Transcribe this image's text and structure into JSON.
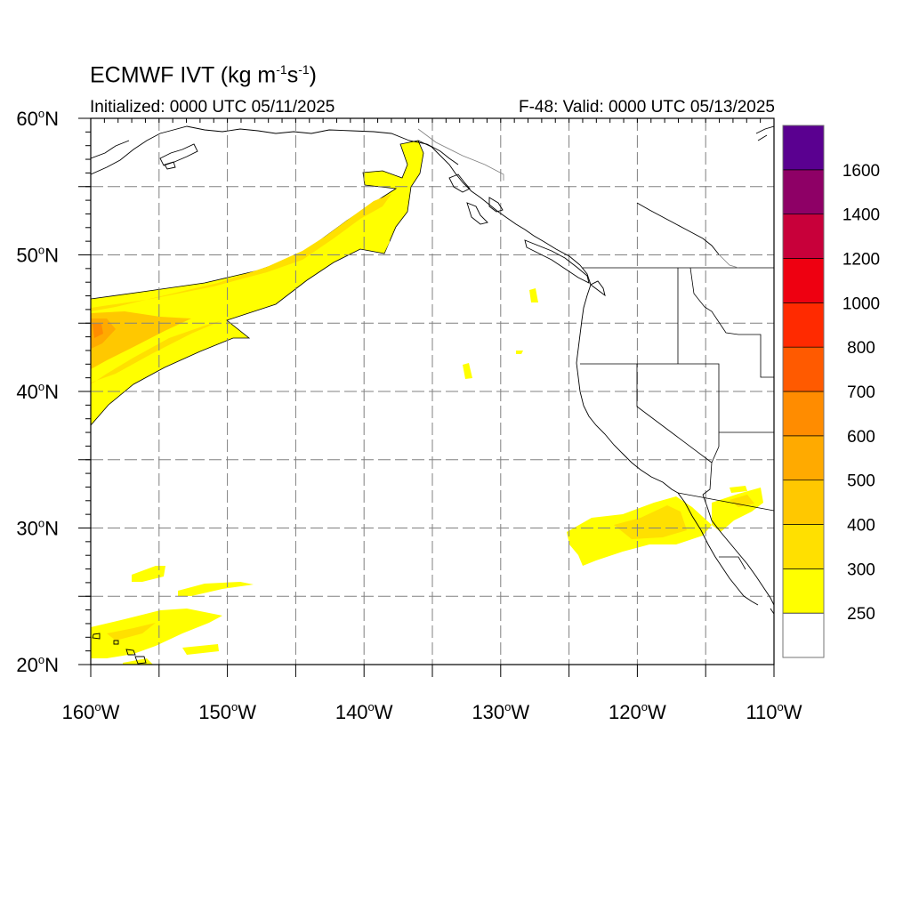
{
  "title": {
    "prefix": "ECMWF IVT (kg m",
    "exp1": "-1",
    "middle": "s",
    "exp2": "-1",
    "suffix": ")"
  },
  "initialized": "Initialized: 0000 UTC 05/11/2025",
  "valid": "F-48: Valid: 0000 UTC 05/13/2025",
  "map": {
    "lon_range": [
      -160,
      -110
    ],
    "lat_range": [
      20,
      60
    ],
    "x_ticks": [
      {
        "lon": -160,
        "label": "160°W"
      },
      {
        "lon": -150,
        "label": "150°W"
      },
      {
        "lon": -140,
        "label": "140°W"
      },
      {
        "lon": -130,
        "label": "130°W"
      },
      {
        "lon": -120,
        "label": "120°W"
      },
      {
        "lon": -110,
        "label": "110°W"
      }
    ],
    "y_ticks": [
      {
        "lat": 20,
        "label": "20°N"
      },
      {
        "lat": 30,
        "label": "30°N"
      },
      {
        "lat": 40,
        "label": "40°N"
      },
      {
        "lat": 50,
        "label": "50°N"
      },
      {
        "lat": 60,
        "label": "60°N"
      }
    ],
    "gridlines": "dashed every 5°"
  },
  "colorbar": {
    "levels": [
      250,
      300,
      400,
      500,
      600,
      700,
      800,
      1000,
      1200,
      1400,
      1600
    ],
    "labels": [
      "250",
      "300",
      "400",
      "500",
      "600",
      "700",
      "800",
      "1000",
      "1200",
      "1400",
      "1600"
    ],
    "colors": [
      "#ffffff",
      "#ffff00",
      "#ffe000",
      "#ffc800",
      "#ffaa00",
      "#ff8c00",
      "#ff5a00",
      "#ff2a00",
      "#ee0011",
      "#c8003a",
      "#8e0066",
      "#5a0090"
    ]
  }
}
